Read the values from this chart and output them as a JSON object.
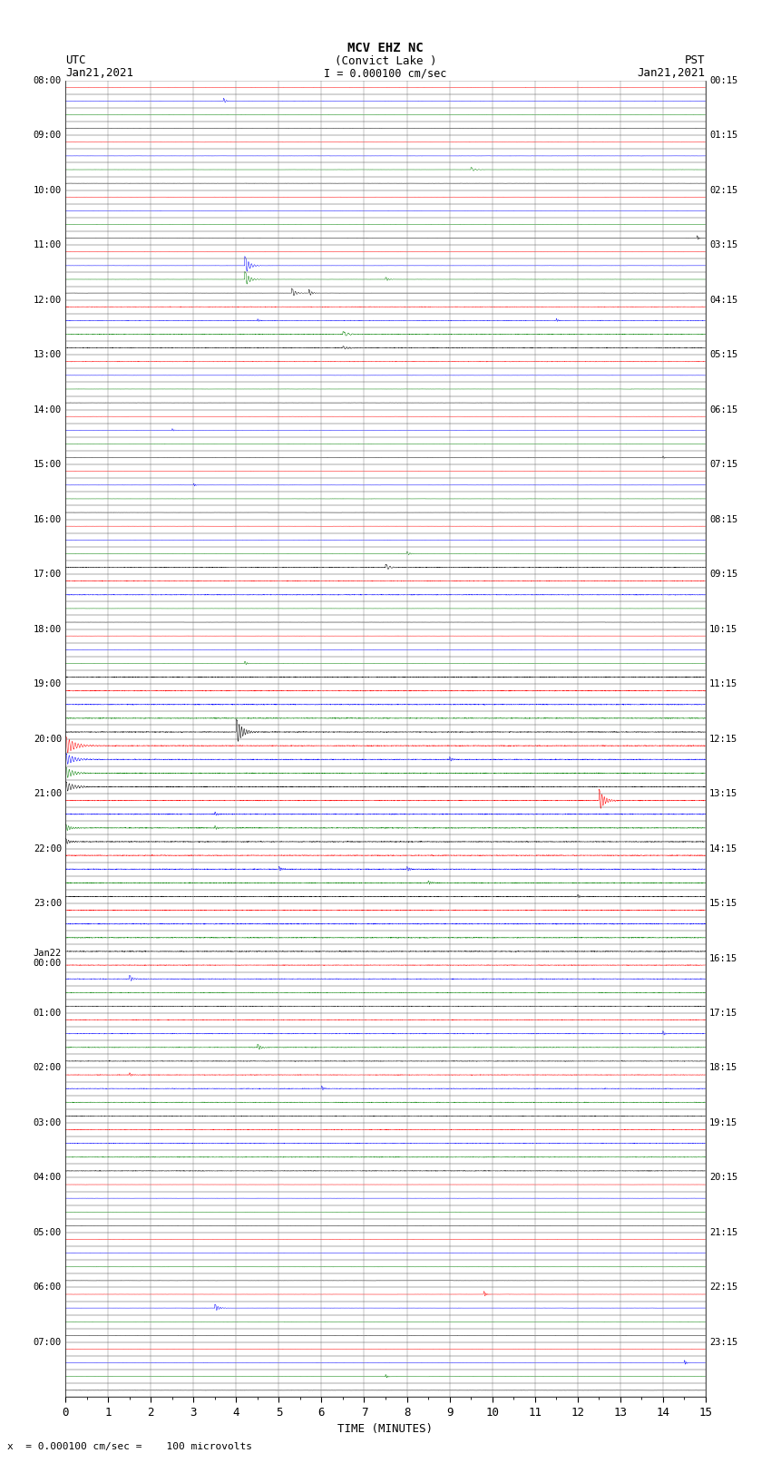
{
  "title_line1": "MCV EHZ NC",
  "title_line2": "(Convict Lake )",
  "title_line3": "I = 0.000100 cm/sec",
  "left_header1": "UTC",
  "left_header2": "Jan21,2021",
  "right_header1": "PST",
  "right_header2": "Jan21,2021",
  "xlabel": "TIME (MINUTES)",
  "bottom_note": "x  = 0.000100 cm/sec =    100 microvolts",
  "bg_color": "#ffffff",
  "trace_colors": [
    "red",
    "blue",
    "green",
    "black"
  ],
  "n_rows": 96,
  "utc_labels_hourly": [
    "08:00",
    "09:00",
    "10:00",
    "11:00",
    "12:00",
    "13:00",
    "14:00",
    "15:00",
    "16:00",
    "17:00",
    "18:00",
    "19:00",
    "20:00",
    "21:00",
    "22:00",
    "23:00",
    "00:00",
    "01:00",
    "02:00",
    "03:00",
    "04:00",
    "05:00",
    "06:00",
    "07:00"
  ],
  "pst_labels_hourly": [
    "00:15",
    "01:15",
    "02:15",
    "03:15",
    "04:15",
    "05:15",
    "06:15",
    "07:15",
    "08:15",
    "09:15",
    "10:15",
    "11:15",
    "12:15",
    "13:15",
    "14:15",
    "15:15",
    "16:15",
    "17:15",
    "18:15",
    "19:15",
    "20:15",
    "21:15",
    "22:15",
    "23:15"
  ],
  "jan22_row": 64,
  "noise_base": 0.008,
  "spike_scale": 0.38
}
